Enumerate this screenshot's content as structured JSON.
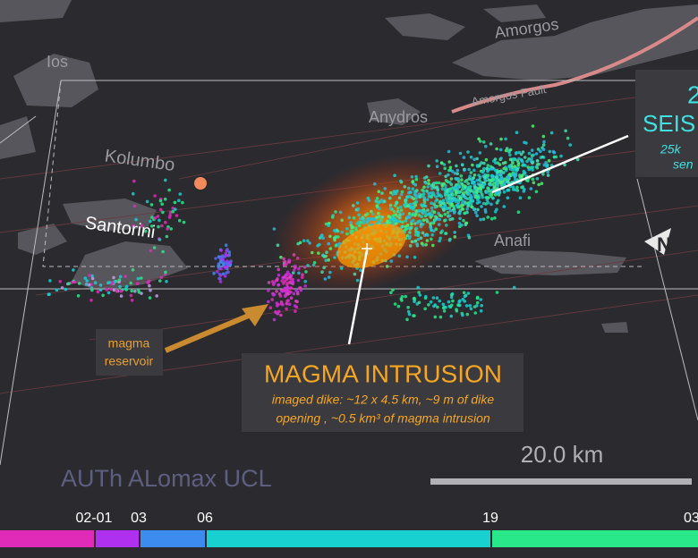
{
  "map": {
    "places": {
      "amorgos": "Amorgos",
      "ios": "Ios",
      "anydros": "Anydros",
      "amorgos_fault": "Amorgos Fault",
      "kolumbo": "Kolumbo",
      "santorini": "Santorini",
      "anafi": "Anafi"
    },
    "seismicity_box": {
      "line1": "2",
      "line2": "SEIS",
      "line3": "25k",
      "line4": "sen"
    },
    "reservoir": {
      "line1": "magma",
      "line2": "reservoir"
    },
    "intrusion": {
      "title": "MAGMA INTRUSION",
      "line1": "imaged dike: ~12 x 4.5 km, ~9 m of  dike",
      "line2": "opening , ~0.5 km³ of magma intrusion"
    },
    "north": "N",
    "scale_bar": "20.0 km",
    "credits": "AUTh ALomax UCL",
    "colorbar": {
      "ticks": [
        "02-01",
        "03",
        "06",
        "19",
        "03"
      ]
    }
  }
}
